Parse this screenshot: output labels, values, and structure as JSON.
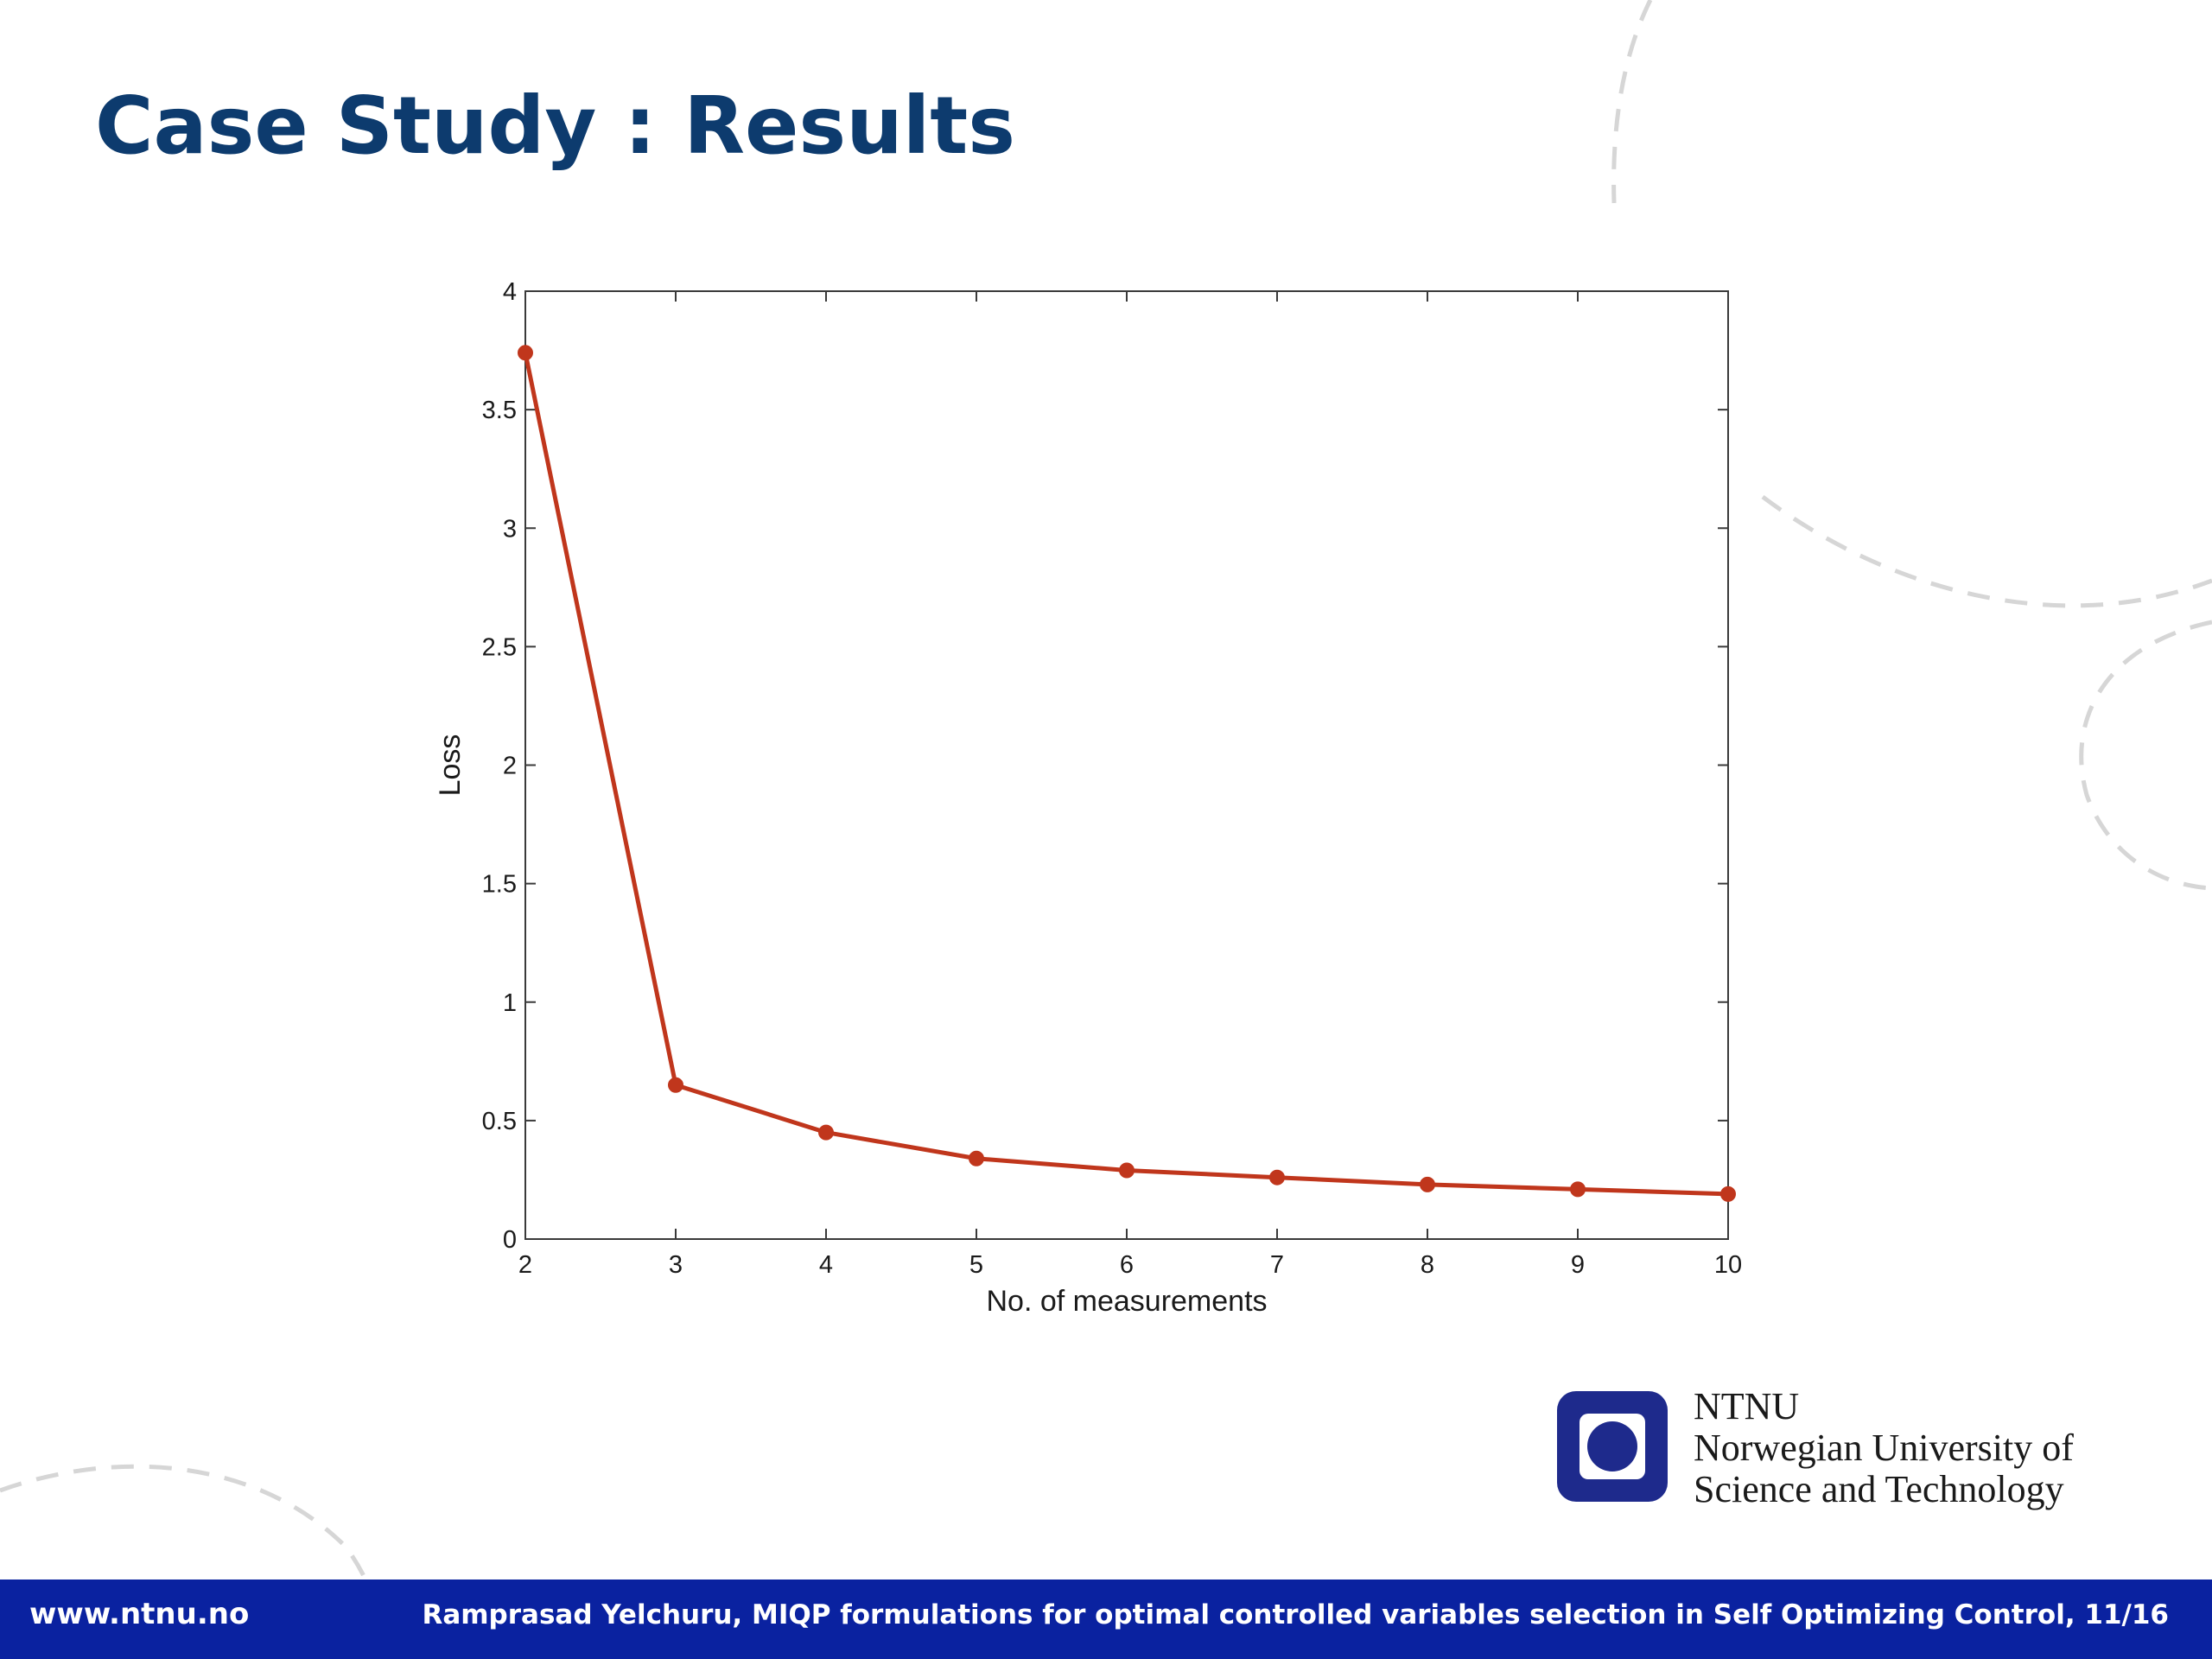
{
  "slide": {
    "title": "Case Study : Results",
    "footer_url": "www.ntnu.no",
    "footer_credit": "Ramprasad Yelchuru, MIQP formulations for optimal controlled variables selection in Self Optimizing Control, 11/16"
  },
  "logo": {
    "line1": "NTNU",
    "line2": "Norwegian University of",
    "line3": "Science and Technology"
  },
  "colors": {
    "title": "#0d3b6e",
    "series": "#c0361c",
    "footer": "#0a22a0",
    "logo": "#1e2a8c"
  },
  "chart_data": {
    "type": "line",
    "title": "",
    "xlabel": "No. of measurements",
    "ylabel": "Loss",
    "xlim": [
      2,
      10
    ],
    "ylim": [
      0,
      4
    ],
    "xticks": [
      "2",
      "3",
      "4",
      "5",
      "6",
      "7",
      "8",
      "9",
      "10"
    ],
    "yticks": [
      "0",
      "0.5",
      "1",
      "1.5",
      "2",
      "2.5",
      "3",
      "3.5",
      "4"
    ],
    "grid": false,
    "series": [
      {
        "x": [
          2,
          3,
          4,
          5,
          6,
          7,
          8,
          9,
          10
        ],
        "values": [
          3.74,
          0.65,
          0.45,
          0.34,
          0.29,
          0.26,
          0.23,
          0.21,
          0.19
        ]
      }
    ]
  }
}
